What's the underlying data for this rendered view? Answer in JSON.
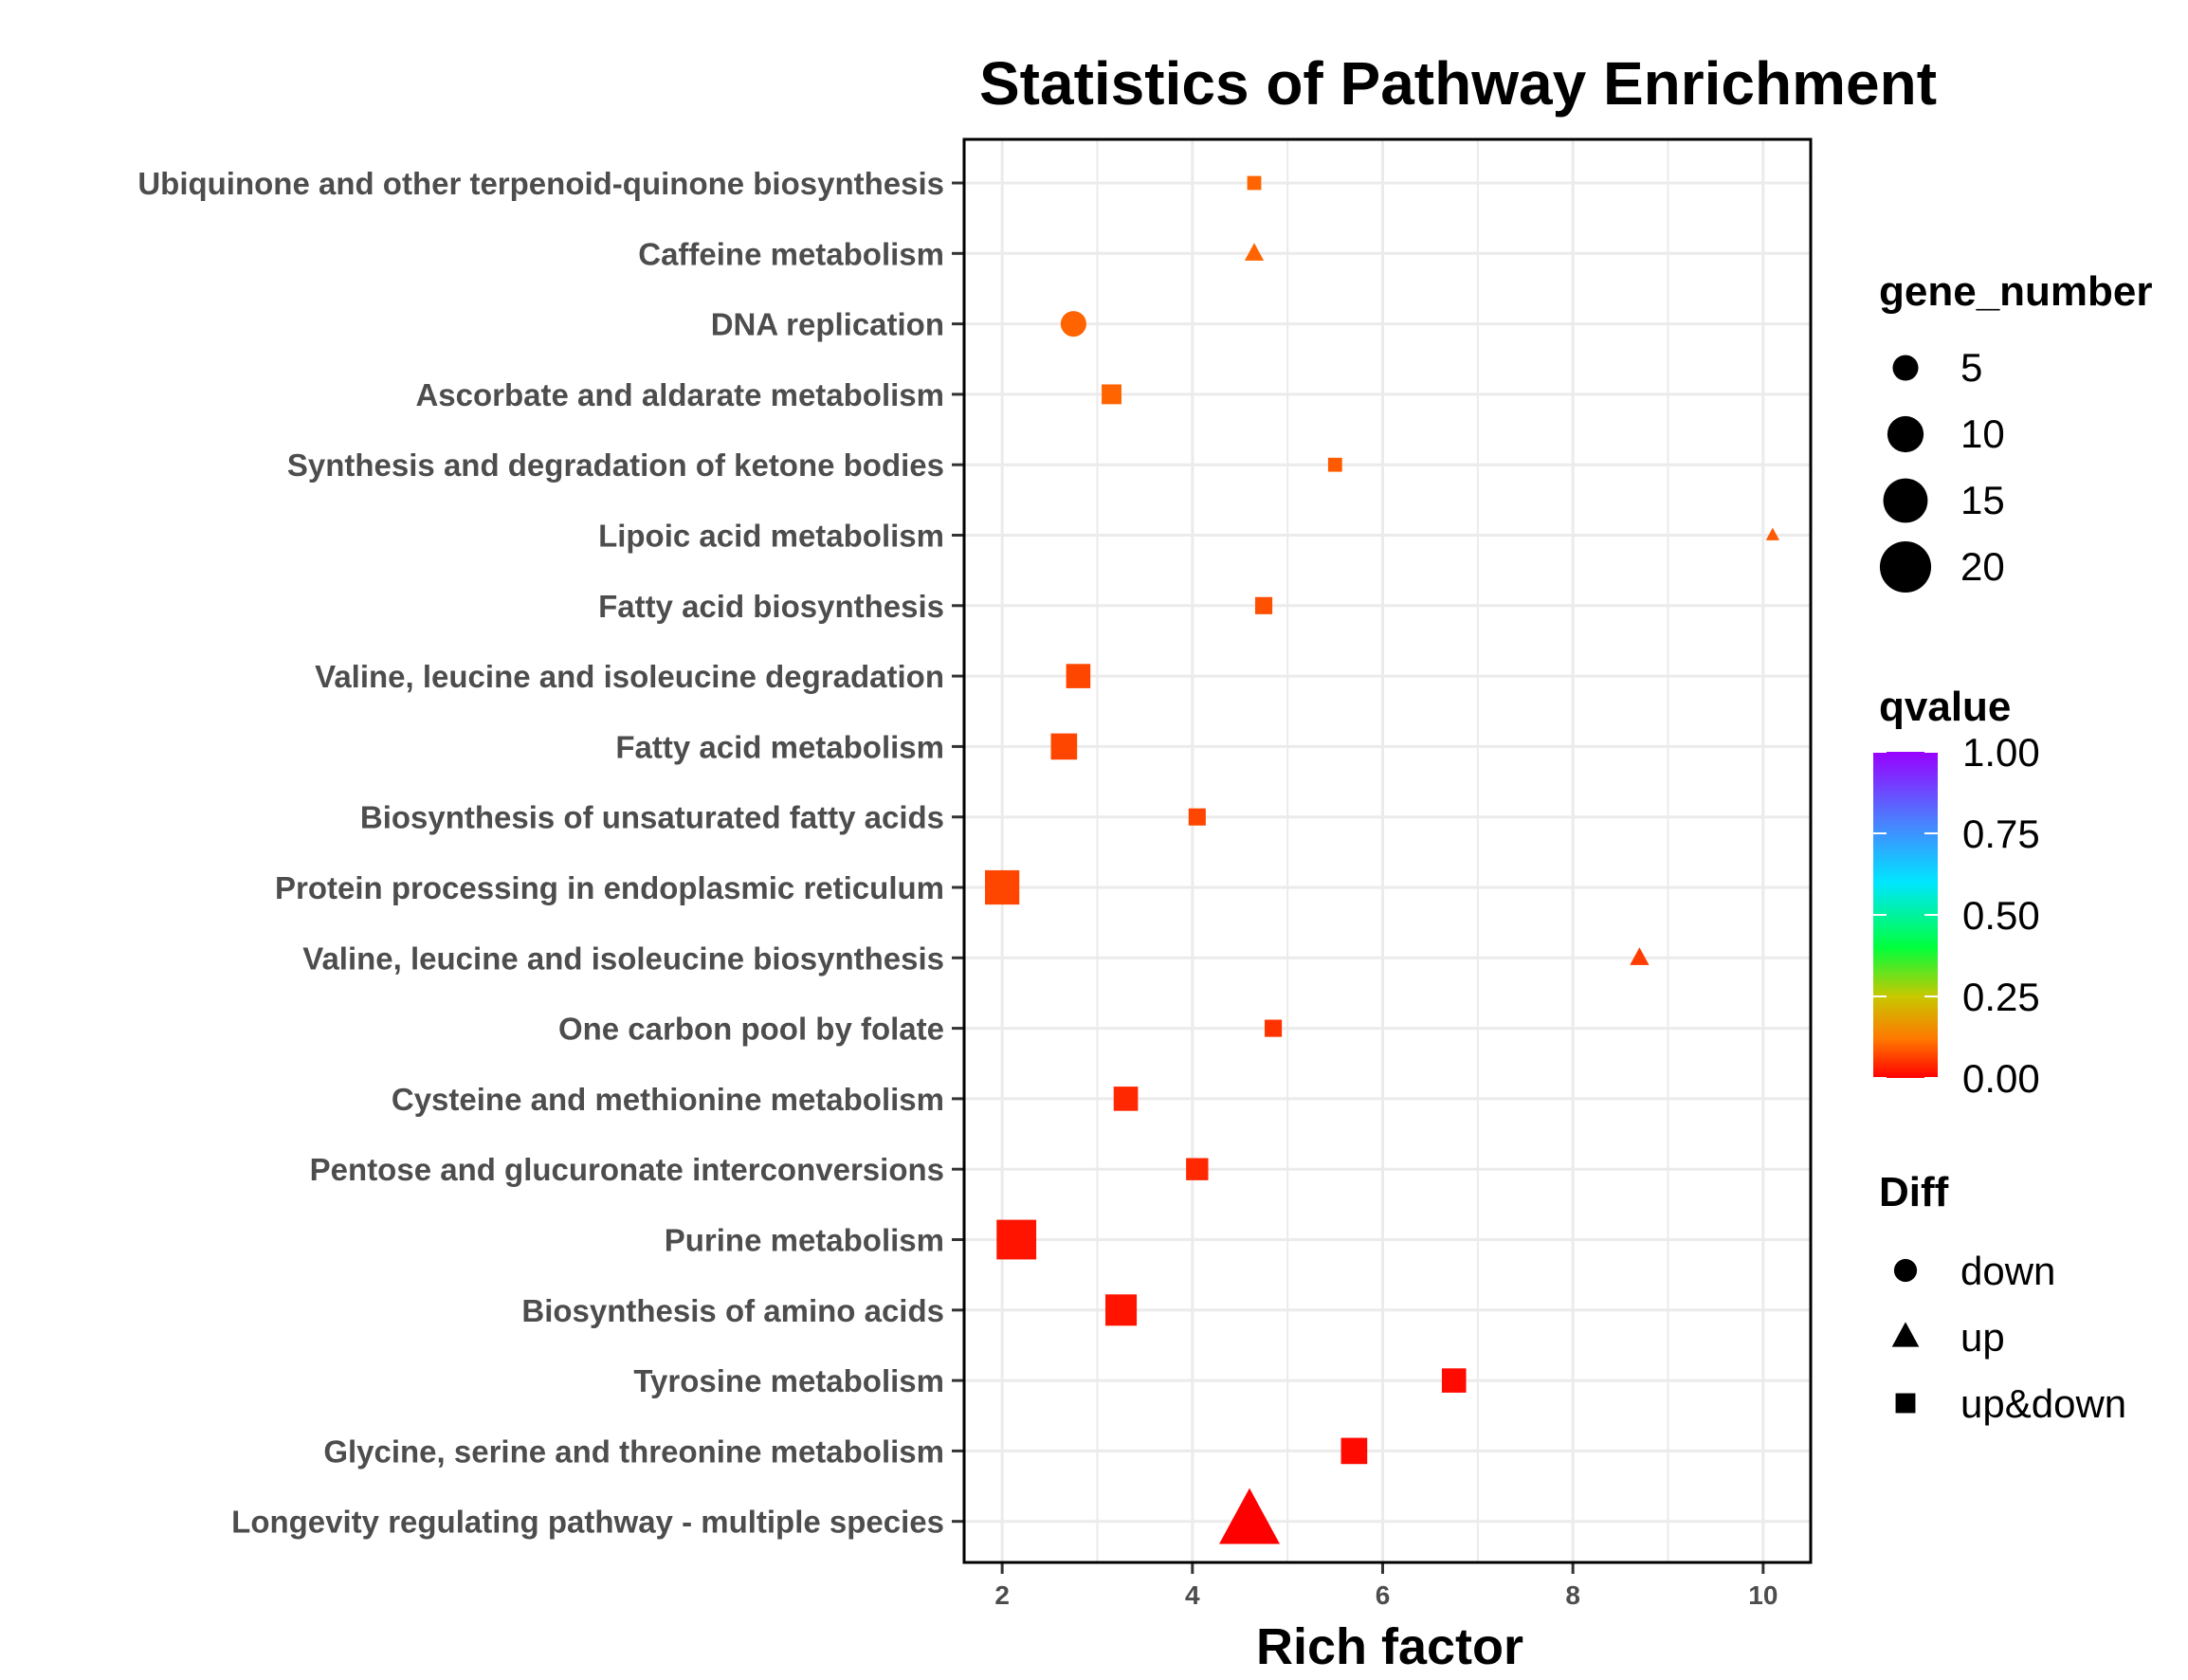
{
  "chart_data": {
    "type": "scatter",
    "title": "Statistics of Pathway Enrichment",
    "xlabel": "Rich factor",
    "ylabel": "",
    "xlim": [
      1.6,
      10.5
    ],
    "xticks": [
      2,
      4,
      6,
      8,
      10
    ],
    "xtick_labels": [
      "2",
      "4",
      "6",
      "8",
      "10"
    ],
    "grid": true,
    "points": [
      {
        "pathway": "Ubiquinone and other terpenoid-quinone biosynthesis",
        "x": 4.65,
        "gene_number": 2,
        "qvalue": 0.1,
        "diff": "up&down"
      },
      {
        "pathway": "Caffeine metabolism",
        "x": 4.65,
        "gene_number": 2,
        "qvalue": 0.1,
        "diff": "up"
      },
      {
        "pathway": "DNA replication",
        "x": 2.75,
        "gene_number": 5,
        "qvalue": 0.1,
        "diff": "down"
      },
      {
        "pathway": "Ascorbate and aldarate metabolism",
        "x": 3.15,
        "gene_number": 4,
        "qvalue": 0.1,
        "diff": "up&down"
      },
      {
        "pathway": "Synthesis and degradation of ketone bodies",
        "x": 5.5,
        "gene_number": 2,
        "qvalue": 0.09,
        "diff": "up&down"
      },
      {
        "pathway": "Lipoic acid metabolism",
        "x": 10.1,
        "gene_number": 1,
        "qvalue": 0.09,
        "diff": "up"
      },
      {
        "pathway": "Fatty acid biosynthesis",
        "x": 4.75,
        "gene_number": 3,
        "qvalue": 0.08,
        "diff": "up&down"
      },
      {
        "pathway": "Valine, leucine and isoleucine degradation",
        "x": 2.8,
        "gene_number": 6,
        "qvalue": 0.07,
        "diff": "up&down"
      },
      {
        "pathway": "Fatty acid metabolism",
        "x": 2.65,
        "gene_number": 7,
        "qvalue": 0.07,
        "diff": "up&down"
      },
      {
        "pathway": "Biosynthesis of unsaturated fatty acids",
        "x": 4.05,
        "gene_number": 3,
        "qvalue": 0.07,
        "diff": "up&down"
      },
      {
        "pathway": "Protein processing in endoplasmic reticulum",
        "x": 2.0,
        "gene_number": 12,
        "qvalue": 0.07,
        "diff": "up&down"
      },
      {
        "pathway": "Valine, leucine and isoleucine biosynthesis",
        "x": 8.7,
        "gene_number": 2,
        "qvalue": 0.06,
        "diff": "up"
      },
      {
        "pathway": "One carbon pool by folate",
        "x": 4.85,
        "gene_number": 3,
        "qvalue": 0.05,
        "diff": "up&down"
      },
      {
        "pathway": "Cysteine and methionine metabolism",
        "x": 3.3,
        "gene_number": 6,
        "qvalue": 0.04,
        "diff": "up&down"
      },
      {
        "pathway": "Pentose and glucuronate interconversions",
        "x": 4.05,
        "gene_number": 5,
        "qvalue": 0.04,
        "diff": "up&down"
      },
      {
        "pathway": "Purine metabolism",
        "x": 2.15,
        "gene_number": 16,
        "qvalue": 0.02,
        "diff": "up&down"
      },
      {
        "pathway": "Biosynthesis of amino acids",
        "x": 3.25,
        "gene_number": 10,
        "qvalue": 0.02,
        "diff": "up&down"
      },
      {
        "pathway": "Tyrosine metabolism",
        "x": 6.75,
        "gene_number": 6,
        "qvalue": 0.01,
        "diff": "up&down"
      },
      {
        "pathway": "Glycine, serine and threonine metabolism",
        "x": 5.7,
        "gene_number": 7,
        "qvalue": 0.01,
        "diff": "up&down"
      },
      {
        "pathway": "Longevity regulating pathway - multiple species",
        "x": 4.6,
        "gene_number": 20,
        "qvalue": 0.0,
        "diff": "up"
      }
    ],
    "legend_gene_number": {
      "title": "gene_number",
      "values": [
        5,
        10,
        15,
        20
      ],
      "labels": [
        "5",
        "10",
        "15",
        "20"
      ]
    },
    "legend_qvalue": {
      "title": "qvalue",
      "labels": [
        "1.00",
        "0.75",
        "0.50",
        "0.25",
        "0.00"
      ],
      "values": [
        1.0,
        0.75,
        0.5,
        0.25,
        0.0
      ]
    },
    "legend_diff": {
      "title": "Diff",
      "labels": [
        "down",
        "up",
        "up&down"
      ]
    },
    "colors": {
      "low": "#ff0000",
      "high": "#9900ff",
      "panel_border": "#000000",
      "grid": "#ebebeb",
      "axis_text": "#4d4d4d"
    }
  }
}
